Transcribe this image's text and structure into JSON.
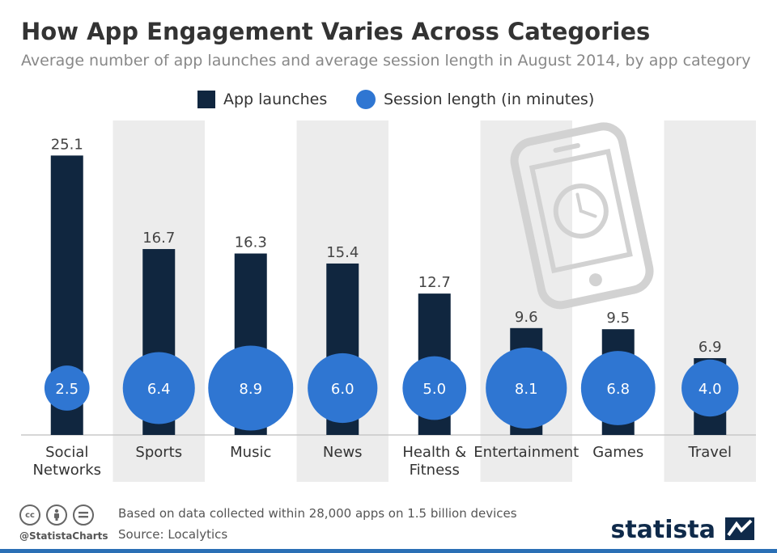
{
  "chart_data": {
    "type": "bar",
    "title": "How App Engagement Varies Across Categories",
    "subtitle": "Average number of app launches and average session length in August 2014, by app category",
    "categories": [
      "Social Networks",
      "Sports",
      "Music",
      "News",
      "Health & Fitness",
      "Entertainment",
      "Games",
      "Travel"
    ],
    "category_lines": [
      [
        "Social",
        "Networks"
      ],
      [
        "Sports"
      ],
      [
        "Music"
      ],
      [
        "News"
      ],
      [
        "Health &",
        "Fitness"
      ],
      [
        "Entertainment"
      ],
      [
        "Games"
      ],
      [
        "Travel"
      ]
    ],
    "series": [
      {
        "name": "App launches",
        "values": [
          25.1,
          16.7,
          16.3,
          15.4,
          12.7,
          9.6,
          9.5,
          6.9
        ]
      },
      {
        "name": "Session length (in minutes)",
        "values": [
          2.5,
          6.4,
          8.9,
          6.0,
          5.0,
          8.1,
          6.8,
          4.0
        ]
      }
    ],
    "bar_labels": [
      "25.1",
      "16.7",
      "16.3",
      "15.4",
      "12.7",
      "9.6",
      "9.5",
      "6.9"
    ],
    "bubble_labels": [
      "2.5",
      "6.4",
      "8.9",
      "6.0",
      "5.0",
      "8.1",
      "6.8",
      "4.0"
    ],
    "ylim": [
      0,
      26
    ],
    "legend_position": "top-center",
    "colors": {
      "bars": "#10263f",
      "bubbles": "#2f76d2",
      "band": "#ececec",
      "axis": "#c8c8c8"
    }
  },
  "footer": {
    "handle": "@StatistaCharts",
    "note": "Based on data collected within 28,000 apps on 1.5 billion devices",
    "source": "Source: Localytics",
    "brand": "statista"
  },
  "icons": [
    "cc-icon",
    "by-icon",
    "nd-icon",
    "phone-clock-icon",
    "statista-logo-icon"
  ]
}
